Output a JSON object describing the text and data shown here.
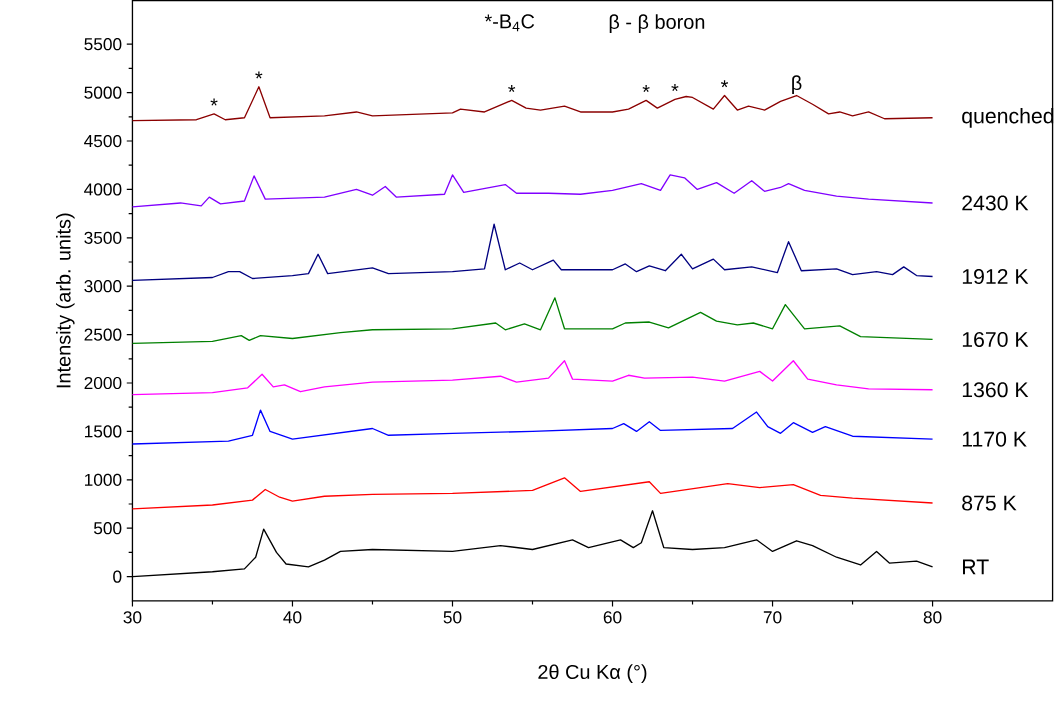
{
  "chart_data": {
    "type": "line",
    "xlabel": "2θ Cu Kα (°)",
    "ylabel": "Intensity (arb. units)",
    "xlim": [
      30,
      87.5
    ],
    "ylim": [
      -250,
      5950
    ],
    "xticks": [
      30,
      40,
      50,
      60,
      70,
      80
    ],
    "yticks": [
      0,
      500,
      1000,
      1500,
      2000,
      2500,
      3000,
      3500,
      4000,
      4500,
      5000,
      5500
    ],
    "annotations": [
      "*-B$_{4}$C",
      "β - β boron",
      {
        "text": "*",
        "x": 35.1,
        "y": 4780
      },
      {
        "text": "*",
        "x": 37.9,
        "y": 5060
      },
      {
        "text": "*",
        "x": 53.7,
        "y": 4920
      },
      {
        "text": "*",
        "x": 62.1,
        "y": 4920
      },
      {
        "text": "*",
        "x": 63.9,
        "y": 4930
      },
      {
        "text": "*",
        "x": 67.0,
        "y": 4970
      },
      {
        "text": "β",
        "x": 71.5,
        "y": 4970
      }
    ],
    "series": [
      {
        "name": "RT",
        "color": "#000000",
        "x": [
          30,
          35,
          37,
          37.7,
          38.2,
          39,
          39.6,
          41,
          42,
          43,
          45,
          50,
          53,
          55,
          57.5,
          58.5,
          60.5,
          61.3,
          61.8,
          62.5,
          63.2,
          65,
          67,
          69,
          70,
          71.5,
          72.5,
          74,
          75.5,
          76.5,
          77.3,
          79,
          80
        ],
        "values": [
          0,
          50,
          80,
          200,
          490,
          250,
          130,
          100,
          170,
          260,
          280,
          260,
          320,
          280,
          380,
          300,
          380,
          300,
          350,
          680,
          300,
          280,
          300,
          380,
          260,
          370,
          320,
          200,
          120,
          260,
          140,
          160,
          100
        ]
      },
      {
        "name": "875 K",
        "color": "#ff0000",
        "x": [
          30,
          35,
          37.5,
          38.3,
          39.2,
          40,
          42,
          45,
          50,
          55,
          57,
          58,
          62.3,
          63,
          67.2,
          69.2,
          71.3,
          73,
          75,
          80
        ],
        "values": [
          700,
          740,
          790,
          900,
          820,
          780,
          830,
          850,
          860,
          890,
          1020,
          880,
          980,
          860,
          960,
          920,
          950,
          840,
          810,
          760
        ]
      },
      {
        "name": "1170 K",
        "color": "#0000ff",
        "x": [
          30,
          36,
          37.5,
          38,
          38.6,
          40,
          45,
          46,
          50,
          55,
          60,
          60.7,
          61.5,
          62.3,
          63,
          67.5,
          69,
          69.7,
          70.5,
          71.3,
          72.5,
          73.3,
          75,
          80
        ],
        "values": [
          1370,
          1400,
          1460,
          1720,
          1500,
          1420,
          1530,
          1460,
          1480,
          1500,
          1530,
          1580,
          1500,
          1600,
          1510,
          1530,
          1700,
          1550,
          1480,
          1590,
          1490,
          1550,
          1450,
          1420
        ]
      },
      {
        "name": "1360 K",
        "color": "#ff00ff",
        "x": [
          30,
          35,
          37.2,
          38.1,
          38.8,
          39.5,
          40.5,
          42,
          45,
          50,
          53,
          54,
          56,
          57,
          57.5,
          60,
          61,
          62,
          65,
          67,
          69.2,
          70,
          71.3,
          72.2,
          74,
          76,
          80
        ],
        "values": [
          1880,
          1900,
          1950,
          2090,
          1960,
          1980,
          1910,
          1960,
          2010,
          2030,
          2070,
          2010,
          2050,
          2230,
          2040,
          2020,
          2080,
          2050,
          2060,
          2020,
          2120,
          2020,
          2230,
          2040,
          1980,
          1940,
          1930
        ]
      },
      {
        "name": "1670 K",
        "color": "#008000",
        "x": [
          30,
          35,
          36.8,
          37.3,
          38,
          40,
          43,
          45,
          50,
          52.7,
          53.3,
          54.5,
          55.5,
          56.4,
          57,
          60,
          60.8,
          62.3,
          63.5,
          65.5,
          66.5,
          67.8,
          68.8,
          70,
          70.8,
          72,
          74.2,
          75.5,
          80
        ],
        "values": [
          2410,
          2430,
          2490,
          2440,
          2490,
          2460,
          2520,
          2550,
          2560,
          2620,
          2550,
          2610,
          2550,
          2880,
          2560,
          2560,
          2620,
          2630,
          2570,
          2730,
          2640,
          2600,
          2620,
          2560,
          2810,
          2560,
          2590,
          2480,
          2450
        ]
      },
      {
        "name": "1912 K",
        "color": "#000080",
        "x": [
          30,
          35,
          36,
          36.7,
          37.5,
          40,
          41,
          41.6,
          42.2,
          45,
          46,
          50,
          52,
          52.6,
          53.3,
          54.2,
          55,
          56.3,
          56.8,
          60,
          60.8,
          61.5,
          62.3,
          63.3,
          64.3,
          65,
          66.3,
          67,
          68.7,
          70.3,
          71,
          71.8,
          74,
          75,
          76.5,
          77.5,
          78.2,
          79,
          80
        ],
        "values": [
          3060,
          3090,
          3150,
          3150,
          3080,
          3110,
          3130,
          3330,
          3130,
          3190,
          3130,
          3150,
          3180,
          3640,
          3170,
          3240,
          3170,
          3270,
          3170,
          3170,
          3230,
          3150,
          3210,
          3160,
          3330,
          3180,
          3280,
          3170,
          3200,
          3140,
          3460,
          3160,
          3180,
          3120,
          3150,
          3120,
          3200,
          3110,
          3100
        ]
      },
      {
        "name": "2430 K",
        "color": "#8000ff",
        "x": [
          30,
          33,
          34.3,
          34.8,
          35.5,
          37,
          37.6,
          38.3,
          42,
          44,
          45,
          45.8,
          46.5,
          49.5,
          50,
          50.7,
          53.3,
          54,
          56,
          58,
          60,
          61.8,
          63,
          63.6,
          64.5,
          65.3,
          66.5,
          67.6,
          68.7,
          69.5,
          70.5,
          71,
          72,
          74,
          76,
          80
        ],
        "values": [
          3820,
          3860,
          3830,
          3920,
          3850,
          3880,
          4140,
          3900,
          3920,
          4000,
          3940,
          4030,
          3920,
          3950,
          4150,
          3970,
          4050,
          3960,
          3960,
          3950,
          3990,
          4060,
          3990,
          4150,
          4120,
          4000,
          4070,
          3960,
          4090,
          3980,
          4020,
          4060,
          3990,
          3930,
          3900,
          3860
        ]
      },
      {
        "name": "quenched",
        "color": "#8b0000",
        "x": [
          30,
          34,
          35.1,
          35.8,
          37,
          37.9,
          38.6,
          42,
          44,
          45,
          50,
          50.5,
          52,
          53.7,
          54.6,
          55.5,
          57,
          58,
          60,
          61,
          62.1,
          62.8,
          63.9,
          64.6,
          65,
          66.3,
          67,
          67.8,
          68.5,
          69.5,
          70.5,
          71.5,
          72.5,
          73.5,
          74.2,
          75,
          76,
          77,
          80
        ],
        "values": [
          4710,
          4720,
          4780,
          4720,
          4740,
          5060,
          4740,
          4760,
          4800,
          4760,
          4790,
          4830,
          4800,
          4920,
          4840,
          4820,
          4860,
          4800,
          4800,
          4830,
          4920,
          4840,
          4930,
          4960,
          4950,
          4830,
          4970,
          4820,
          4860,
          4820,
          4910,
          4970,
          4880,
          4780,
          4800,
          4760,
          4800,
          4730,
          4740
        ]
      }
    ]
  }
}
